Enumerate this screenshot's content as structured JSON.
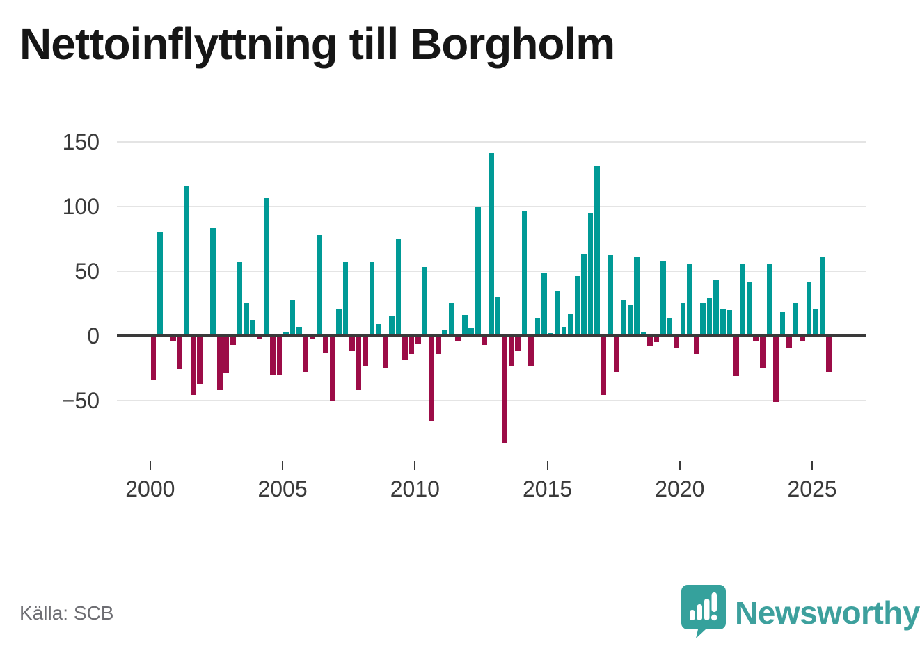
{
  "title": "Nettoinflyttning till Borgholm",
  "source": "Källa: SCB",
  "branding": {
    "logo_text": "Newsworthy",
    "logo_icon": "bar-chart-speech-bubble-icon",
    "logo_color": "#3da09d",
    "icon_color": "#35a19c"
  },
  "chart_data": {
    "type": "bar",
    "title": "Nettoinflyttning till Borgholm",
    "series_name": "Nettoinflyttning per kvartal",
    "start_year": 2000,
    "start_quarter": 1,
    "frequency": "quarterly",
    "values": [
      -34,
      80,
      0,
      -4,
      -26,
      116,
      -46,
      -37,
      0,
      83,
      -42,
      -29,
      -7,
      57,
      25,
      12,
      -3,
      106,
      -30,
      -30,
      3,
      28,
      7,
      -28,
      -3,
      78,
      -13,
      -50,
      21,
      57,
      -12,
      -42,
      -23,
      57,
      9,
      -25,
      15,
      75,
      -19,
      -14,
      -6,
      53,
      -66,
      -14,
      4,
      25,
      -4,
      16,
      6,
      99,
      -7,
      141,
      30,
      -83,
      -23,
      -12,
      96,
      -24,
      14,
      48,
      2,
      34,
      7,
      17,
      46,
      63,
      95,
      131,
      -46,
      62,
      -28,
      28,
      24,
      61,
      3,
      -8,
      -5,
      58,
      14,
      -10,
      25,
      55,
      -14,
      25,
      29,
      43,
      21,
      20,
      -31,
      56,
      42,
      -4,
      -25,
      56,
      -51,
      18,
      -10,
      25,
      -4,
      42,
      21,
      61,
      -28
    ],
    "y_ticks": [
      "150",
      "100",
      "50",
      "0",
      "−50"
    ],
    "y_tick_values": [
      150,
      100,
      50,
      0,
      -50
    ],
    "x_ticks": [
      2000,
      2005,
      2010,
      2015,
      2020,
      2025
    ],
    "ylim": [
      -90,
      155
    ],
    "grid": true,
    "legend": "none",
    "colors": {
      "positive": "#009a96",
      "negative": "#9c0c47",
      "axis": "#3a3a3a",
      "grid": "#e4e4e4"
    }
  }
}
